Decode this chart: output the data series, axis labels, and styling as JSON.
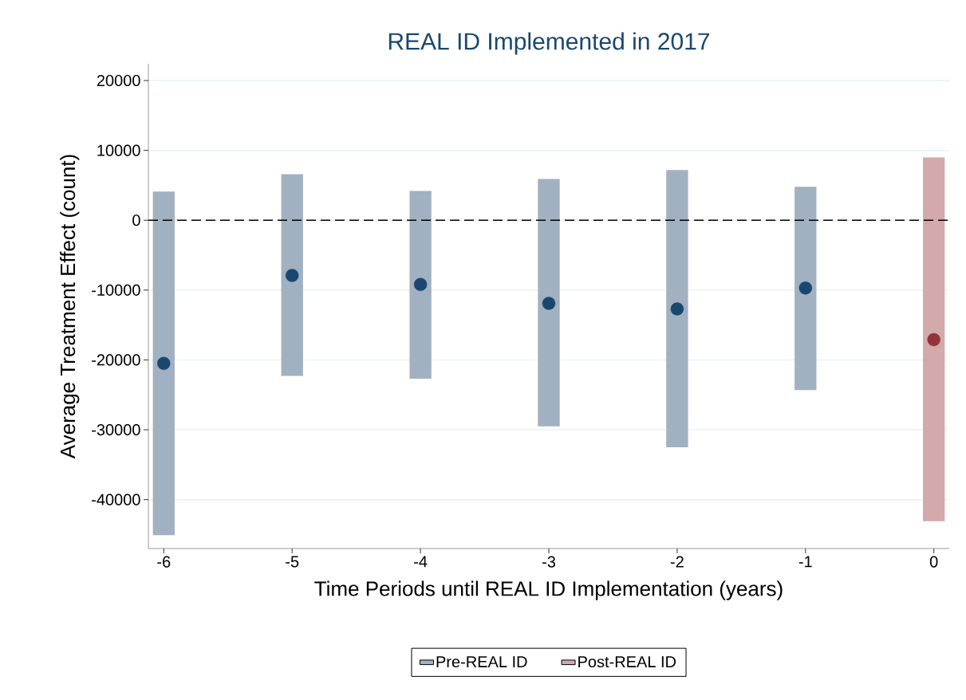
{
  "chart_data": {
    "type": "bar",
    "title": "REAL ID Implemented in 2017",
    "xlabel": "Time Periods until REAL ID Implementation (years)",
    "ylabel": "Average Treatment Effect (count)",
    "xlim": [
      -6.12,
      0.12
    ],
    "ylim": [
      -47000,
      22400
    ],
    "xticks": [
      -6,
      -5,
      -4,
      -3,
      -2,
      -1,
      0
    ],
    "yticks": [
      -40000,
      -30000,
      -20000,
      -10000,
      0,
      10000,
      20000
    ],
    "grid": "y",
    "legend": "bottom",
    "series": [
      {
        "name": "Pre-REAL ID",
        "color": "#a1b1c2",
        "x": [
          -6,
          -5,
          -4,
          -3,
          -2,
          -1
        ],
        "base": [
          -45100,
          -22300,
          -22700,
          -29500,
          -32500,
          -24300
        ],
        "values": [
          49200,
          28900,
          26900,
          35400,
          39700,
          29100
        ]
      },
      {
        "name": "Post-REAL ID",
        "color": "#d4a9ab",
        "x": [
          0
        ],
        "base": [
          -43100
        ],
        "values": [
          52100
        ]
      },
      {
        "type": "scatter",
        "color": "#1a476f",
        "marker": "circle",
        "x": [
          -6,
          -5,
          -4,
          -3,
          -2,
          -1
        ],
        "values": [
          -20500,
          -7900,
          -9200,
          -11900,
          -12700,
          -9700
        ]
      },
      {
        "type": "scatter",
        "color": "#90353b",
        "marker": "circle",
        "x": [
          0
        ],
        "values": [
          -17100
        ]
      }
    ],
    "ref_lines": [
      {
        "axis": "y",
        "value": 0,
        "color": "#000000",
        "line_style": "dashed"
      }
    ]
  }
}
